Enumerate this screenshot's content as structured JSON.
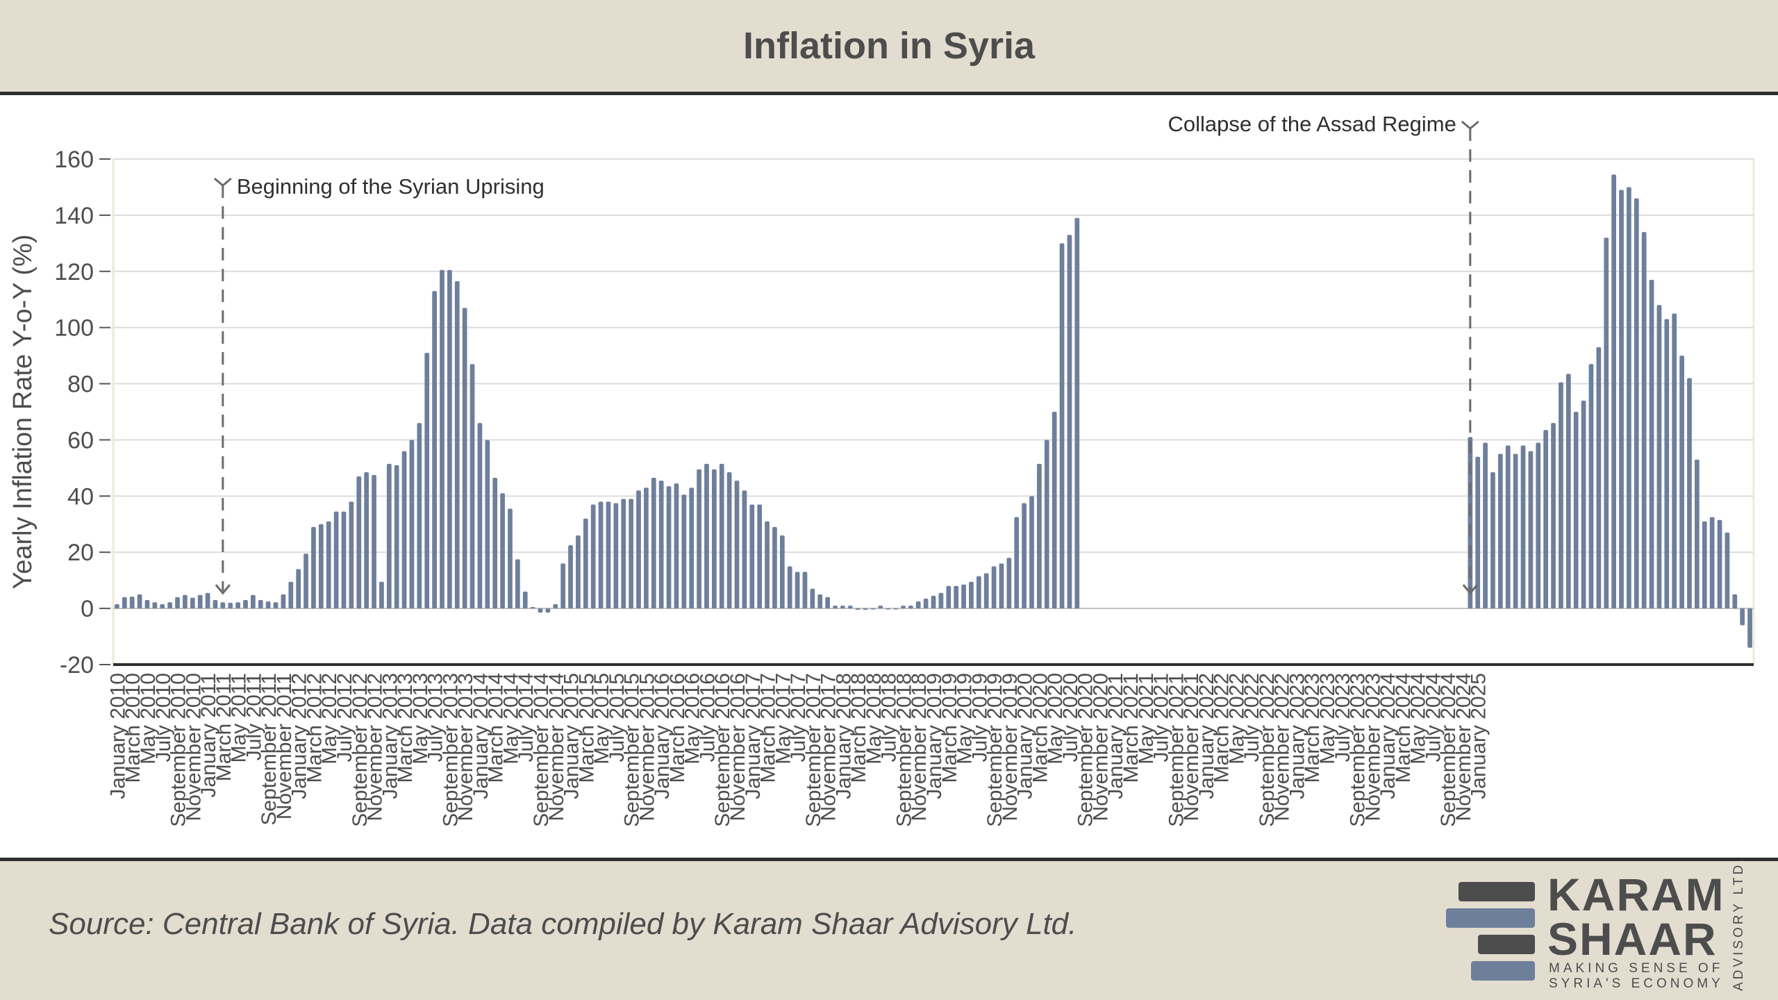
{
  "title": "Inflation in Syria",
  "source": "Source: Central Bank of Syria. Data compiled by Karam Shaar Advisory Ltd.",
  "logo": {
    "line1": "KARAM",
    "line2": "SHAAR",
    "tagline1": "MAKING SENSE OF",
    "tagline2": "SYRIA'S ECONOMY",
    "side": "ADVISORY LTD."
  },
  "colors": {
    "bar": "#6e7f9c",
    "background": "#e3ddd0",
    "text": "#4d4d4d",
    "rule": "#2e2e2e"
  },
  "chart_data": {
    "type": "bar",
    "title": "Inflation in Syria",
    "ylabel": "Yearly Inflation Rate Y-o-Y (%)",
    "xlabel": "",
    "ylim": [
      -20,
      160
    ],
    "yticks": [
      -20,
      0,
      20,
      40,
      60,
      80,
      100,
      120,
      140,
      160
    ],
    "grid": true,
    "start": "January 2010",
    "xtick_labels": [
      "January 2010",
      "March 2010",
      "May 2010",
      "July 2010",
      "September 2010",
      "November 2010",
      "January 2011",
      "March 2011",
      "May 2011",
      "July 2011",
      "September 2011",
      "November 2011",
      "January 2012",
      "March 2012",
      "May 2012",
      "July 2012",
      "September 2012",
      "November 2012",
      "January 2013",
      "March 2013",
      "May 2013",
      "July 2013",
      "September 2013",
      "November 2013",
      "January 2014",
      "March 2014",
      "May 2014",
      "July 2014",
      "September 2014",
      "November 2014",
      "January 2015",
      "March 2015",
      "May 2015",
      "July 2015",
      "September 2015",
      "November 2015",
      "January 2016",
      "March 2016",
      "May 2016",
      "July 2016",
      "September 2016",
      "November 2016",
      "January 2017",
      "March 2017",
      "May 2017",
      "July 2017",
      "September 2017",
      "November 2017",
      "January 2018",
      "March 2018",
      "May 2018",
      "July 2018",
      "September 2018",
      "November 2018",
      "January 2019",
      "March 2019",
      "May 2019",
      "July 2019",
      "September 2019",
      "November 2019",
      "January 2020",
      "March 2020",
      "May 2020",
      "July 2020",
      "September 2020",
      "November 2020",
      "January 2021",
      "March 2021",
      "May 2021",
      "July 2021",
      "September 2021",
      "November 2021",
      "January 2022",
      "March 2022",
      "May 2022",
      "July 2022",
      "September 2022",
      "November 2022",
      "January 2023",
      "March 2023",
      "May 2023",
      "July 2023",
      "September 2023",
      "November 2023",
      "January 2024",
      "March 2024",
      "May 2024",
      "July 2024",
      "September 2024",
      "November 2024",
      "January 2025"
    ],
    "values": [
      1.5,
      4.0,
      4.2,
      5.0,
      3.0,
      2.2,
      1.5,
      2.2,
      4.0,
      4.8,
      3.8,
      4.8,
      5.5,
      3.0,
      2.2,
      2.0,
      2.2,
      3.0,
      4.8,
      3.0,
      2.5,
      2.2,
      5.0,
      9.5,
      14,
      19.5,
      29,
      30,
      31,
      34.5,
      34.5,
      38,
      47,
      48.5,
      47.5,
      9.5,
      51.5,
      51,
      56,
      60,
      66,
      91,
      113,
      120.5,
      120.5,
      116.5,
      107,
      87,
      66,
      60,
      46.5,
      41,
      35.5,
      17.5,
      6,
      0.5,
      -1.5,
      -1.5,
      1.5,
      16,
      22.5,
      26,
      32,
      37,
      38,
      38,
      37.5,
      39,
      39,
      42,
      43,
      46.5,
      45.5,
      43.5,
      44.5,
      40.5,
      43,
      49.5,
      51.5,
      49.5,
      51.5,
      48.5,
      45.5,
      42,
      37,
      37,
      31,
      29,
      26,
      15,
      13,
      13,
      7,
      5,
      4,
      1,
      1,
      1,
      -0.5,
      -0.5,
      0,
      1,
      0,
      0,
      1,
      1,
      2.5,
      3.5,
      4.5,
      5.5,
      8,
      8,
      8.5,
      9.5,
      11.5,
      12.5,
      15,
      16,
      18,
      32.5,
      37.5,
      40,
      51.5,
      60,
      70,
      130,
      133,
      139,
      null,
      null,
      null,
      null,
      null,
      null,
      null,
      null,
      null,
      null,
      null,
      null,
      null,
      null,
      null,
      null,
      null,
      null,
      null,
      null,
      null,
      null,
      null,
      null,
      null,
      null,
      null,
      null,
      null,
      null,
      null,
      null,
      null,
      null,
      null,
      null,
      null,
      null,
      null,
      null,
      null,
      null,
      null,
      null,
      null,
      null,
      null,
      null,
      null,
      null,
      null,
      61,
      54,
      59,
      48.5,
      55,
      58,
      55,
      58,
      56,
      59,
      63.5,
      66,
      80.5,
      83.5,
      70,
      74,
      87,
      93,
      132,
      154.5,
      149,
      150,
      146,
      134,
      117,
      108,
      103,
      105,
      90,
      82,
      53,
      31,
      32.5,
      31.5,
      27,
      5,
      -6,
      -14
    ],
    "annotations": [
      {
        "text": "Beginning of the Syrian Uprising",
        "date": "March 2011"
      },
      {
        "text": "Collapse of the Assad Regime",
        "date": "December 2024"
      }
    ]
  }
}
